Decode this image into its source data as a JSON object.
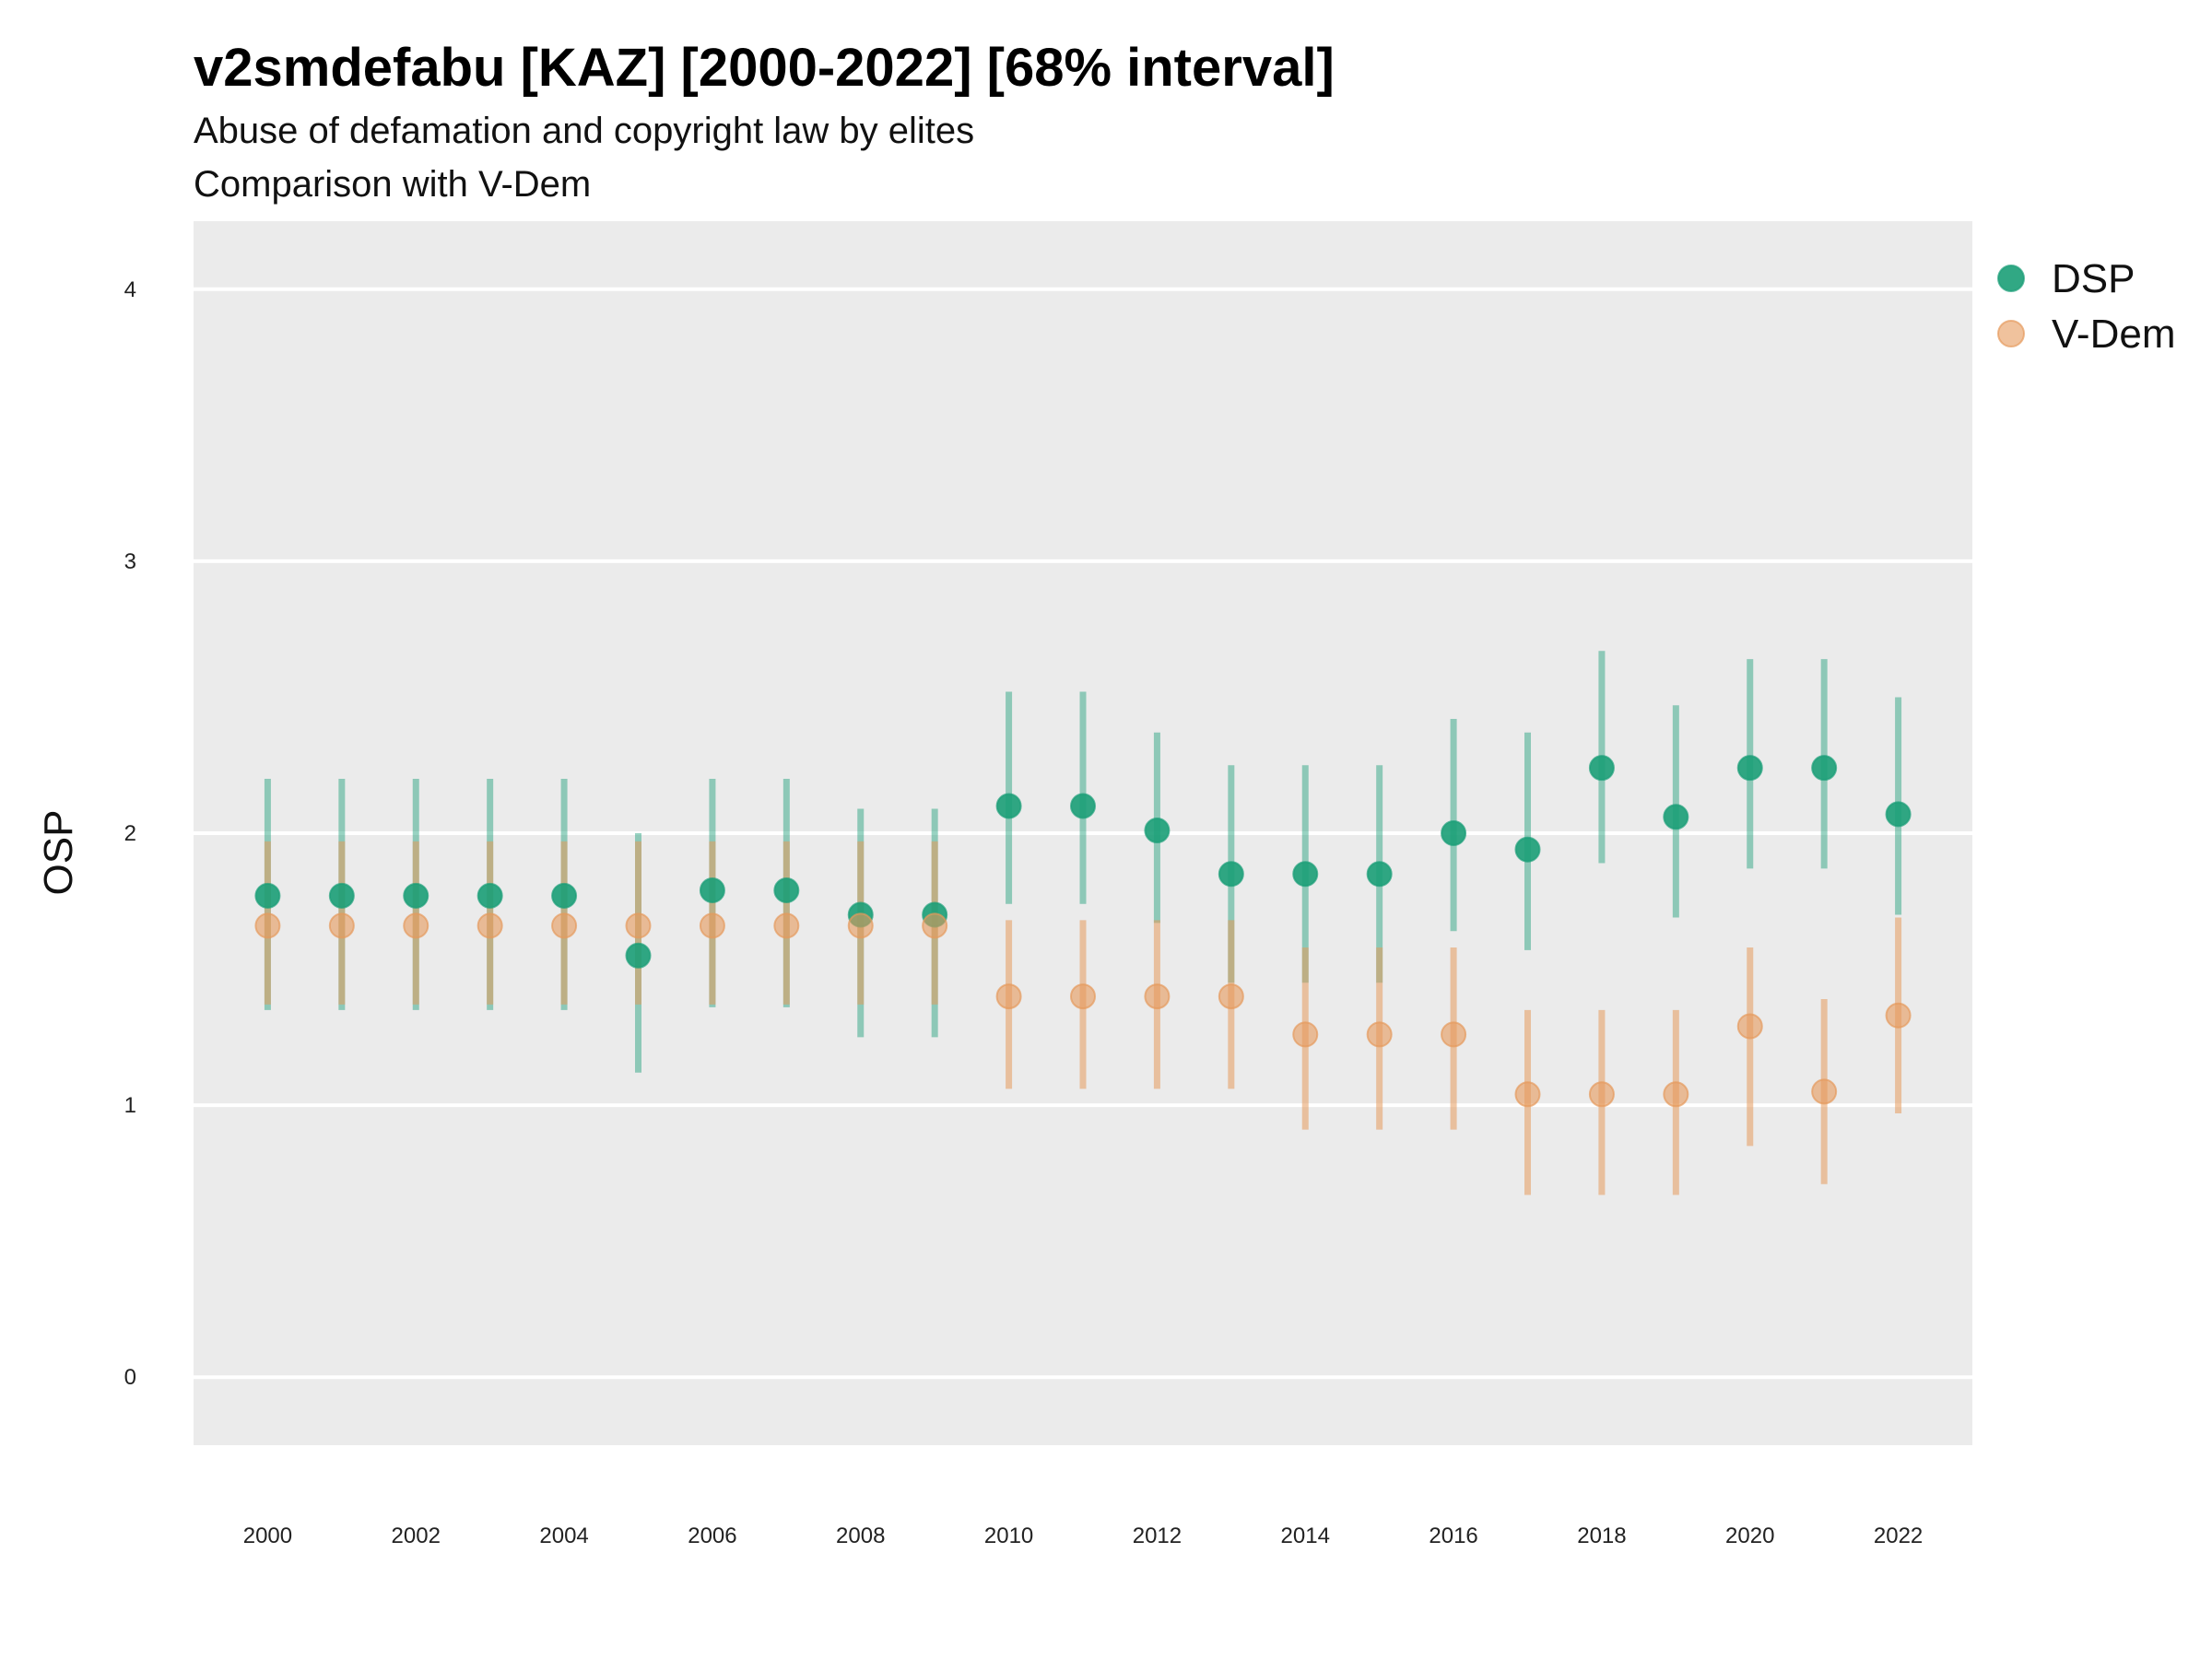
{
  "chart_data": {
    "type": "scatter",
    "title": "v2smdefabu [KAZ] [2000-2022] [68% interval]",
    "subtitle": "Abuse of defamation and copyright law by elites",
    "subtitle2": "Comparison with V-Dem",
    "xlabel": "",
    "ylabel": "OSP",
    "xlim": [
      1999,
      2023
    ],
    "ylim": [
      -0.25,
      4.25
    ],
    "yticks": [
      0,
      1,
      2,
      3,
      4
    ],
    "xticks": [
      2000,
      2002,
      2004,
      2006,
      2008,
      2010,
      2012,
      2014,
      2016,
      2018,
      2020,
      2022
    ],
    "legend_position": "right-top",
    "grid": true,
    "x": [
      2000,
      2001,
      2002,
      2003,
      2004,
      2005,
      2006,
      2007,
      2008,
      2009,
      2010,
      2011,
      2012,
      2013,
      2014,
      2015,
      2016,
      2017,
      2018,
      2019,
      2020,
      2021,
      2022
    ],
    "series": [
      {
        "name": "DSP",
        "color": "#1b9e77",
        "values": [
          1.77,
          1.77,
          1.77,
          1.77,
          1.77,
          1.55,
          1.79,
          1.79,
          1.7,
          1.7,
          2.1,
          2.1,
          2.01,
          1.85,
          1.85,
          1.85,
          2.0,
          1.94,
          2.24,
          2.06,
          2.24,
          2.24,
          2.07
        ],
        "lower": [
          1.35,
          1.35,
          1.35,
          1.35,
          1.35,
          1.12,
          1.36,
          1.36,
          1.25,
          1.25,
          1.74,
          1.74,
          1.67,
          1.45,
          1.45,
          1.45,
          1.64,
          1.57,
          1.89,
          1.69,
          1.87,
          1.87,
          1.7
        ],
        "upper": [
          2.2,
          2.2,
          2.2,
          2.2,
          2.2,
          2.0,
          2.2,
          2.2,
          2.09,
          2.09,
          2.52,
          2.52,
          2.37,
          2.25,
          2.25,
          2.25,
          2.42,
          2.37,
          2.67,
          2.47,
          2.64,
          2.64,
          2.5
        ]
      },
      {
        "name": "V-Dem",
        "color": "#e69a5c",
        "values": [
          1.66,
          1.66,
          1.66,
          1.66,
          1.66,
          1.66,
          1.66,
          1.66,
          1.66,
          1.66,
          1.4,
          1.4,
          1.4,
          1.4,
          1.26,
          1.26,
          1.26,
          1.04,
          1.04,
          1.04,
          1.29,
          1.05,
          1.33
        ],
        "lower": [
          1.37,
          1.37,
          1.37,
          1.37,
          1.37,
          1.37,
          1.37,
          1.37,
          1.37,
          1.37,
          1.06,
          1.06,
          1.06,
          1.06,
          0.91,
          0.91,
          0.91,
          0.67,
          0.67,
          0.67,
          0.85,
          0.71,
          0.97
        ],
        "upper": [
          1.97,
          1.97,
          1.97,
          1.97,
          1.97,
          1.97,
          1.97,
          1.97,
          1.97,
          1.97,
          1.68,
          1.68,
          1.68,
          1.68,
          1.58,
          1.58,
          1.58,
          1.35,
          1.35,
          1.35,
          1.58,
          1.39,
          1.69
        ]
      }
    ]
  }
}
